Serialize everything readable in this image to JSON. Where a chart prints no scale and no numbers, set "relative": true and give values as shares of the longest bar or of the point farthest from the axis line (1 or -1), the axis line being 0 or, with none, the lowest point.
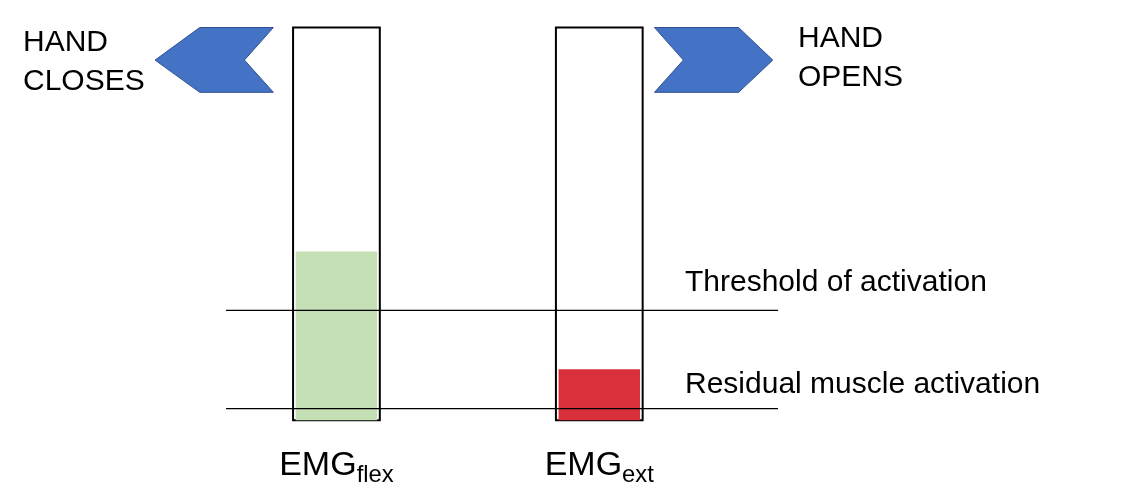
{
  "chart_data": {
    "type": "bar",
    "relative": true,
    "categories": [
      "EMG$_{flex}$",
      "EMG$_{ext}$"
    ],
    "series": [
      {
        "color": "#ffffff",
        "values": [
          1,
          1
        ]
      },
      {
        "colors": [
          "#c5e0b4",
          "#d9303c"
        ],
        "values": [
          0.43,
          0.13
        ]
      }
    ],
    "ref_lines": [
      {
        "axis": "y",
        "value": 0.28,
        "label": "Threshold of activation",
        "color": "#000000"
      },
      {
        "axis": "y",
        "value": 0.03,
        "label": "Residual muscle activation",
        "color": "#000000"
      }
    ],
    "annotations": [
      "HAND\nCLOSES",
      "HAND\nOPENS"
    ]
  }
}
